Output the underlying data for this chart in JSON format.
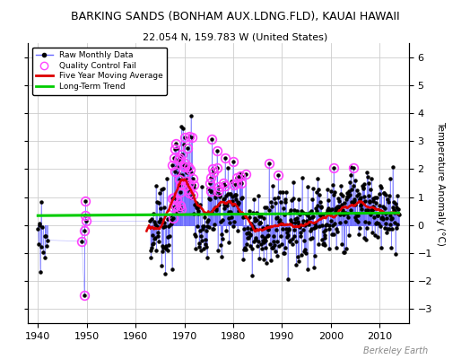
{
  "title": "BARKING SANDS (BONHAM AUX.LDNG.FLD), KAUAI HAWAII",
  "subtitle": "22.054 N, 159.783 W (United States)",
  "ylabel": "Temperature Anomaly (°C)",
  "watermark": "Berkeley Earth",
  "xlim": [
    1938,
    2016
  ],
  "ylim": [
    -3.5,
    6.5
  ],
  "yticks": [
    -3,
    -2,
    -1,
    0,
    1,
    2,
    3,
    4,
    5,
    6
  ],
  "xticks": [
    1940,
    1950,
    1960,
    1970,
    1980,
    1990,
    2000,
    2010
  ],
  "bg_color": "#ffffff",
  "grid_color": "#cccccc",
  "stem_color": "#6666ff",
  "dot_color": "#000000",
  "qc_color": "#ff44ff",
  "moving_avg_color": "#dd0000",
  "trend_color": "#00cc00",
  "seed": 77
}
